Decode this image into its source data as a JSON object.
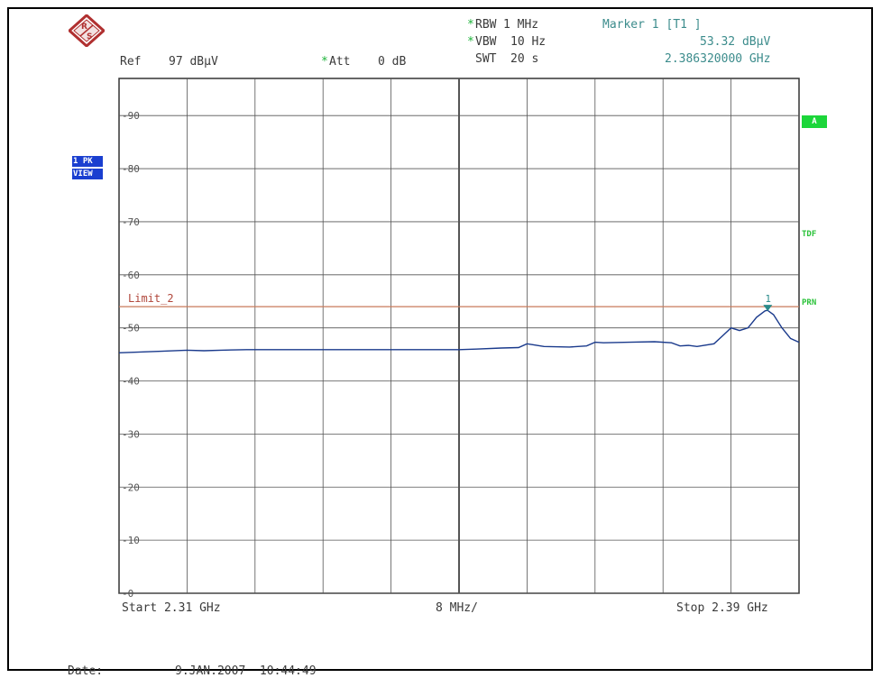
{
  "header": {
    "rbw_label": "RBW",
    "rbw_value": "1 MHz",
    "vbw_label": "VBW",
    "vbw_value": "10 Hz",
    "swt_label": "SWT",
    "swt_value": "20 s",
    "marker_title": "Marker 1 [T1 ]",
    "marker_level": "53.32 dBµV",
    "marker_freq": "2.386320000 GHz",
    "ref_label": "Ref",
    "ref_value": "97 dBµV",
    "att_label": "Att",
    "att_value": "0 dB",
    "star": "*"
  },
  "side_labels": {
    "trace_mode": "1 PK",
    "trace_view": "VIEW",
    "a_label": "A",
    "tdf_label": "TDF",
    "prn_label": "PRN"
  },
  "footer": {
    "start": "Start 2.31 GHz",
    "span_div": "8 MHz/",
    "stop": "Stop 2.39 GHz",
    "date_label": "Date:",
    "date_value": "9.JAN.2007  10:44:49"
  },
  "colors": {
    "trace": "#1a3a8c",
    "grid": "#555555",
    "limit": "#c87a5a",
    "marker": "#2a8a8a",
    "logo": "#b03030"
  },
  "chart_data": {
    "type": "line",
    "x_unit": "GHz",
    "y_unit": "dBµV",
    "xlim": [
      2.31,
      2.39
    ],
    "ylim": [
      0,
      97
    ],
    "y_ticks": [
      0,
      10,
      20,
      30,
      40,
      50,
      60,
      70,
      80,
      90
    ],
    "y_tick_labels": [
      "0",
      "10",
      "20",
      "30",
      "40",
      "50",
      "60",
      "70",
      "80",
      "90"
    ],
    "grid": true,
    "limit_line": {
      "name": "Limit_2",
      "value": 54
    },
    "marker": {
      "label": "1",
      "x": 2.38632,
      "y": 53.32
    },
    "series": [
      {
        "x": [
          2.31,
          2.315,
          2.318,
          2.32,
          2.322,
          2.325,
          2.328,
          2.33,
          2.335,
          2.34,
          2.345,
          2.35,
          2.352,
          2.355,
          2.357,
          2.358,
          2.36,
          2.363,
          2.365,
          2.366,
          2.367,
          2.37,
          2.373,
          2.375,
          2.376,
          2.377,
          2.378,
          2.38,
          2.381,
          2.382,
          2.383,
          2.384,
          2.385,
          2.386,
          2.3863,
          2.387,
          2.388,
          2.389,
          2.39
        ],
        "values": [
          45.3,
          45.6,
          45.8,
          45.7,
          45.8,
          45.9,
          45.9,
          45.9,
          45.9,
          45.9,
          45.9,
          45.9,
          46.0,
          46.2,
          46.3,
          47.0,
          46.5,
          46.4,
          46.6,
          47.3,
          47.2,
          47.3,
          47.4,
          47.2,
          46.6,
          46.7,
          46.5,
          47.0,
          48.5,
          50.0,
          49.5,
          50.0,
          52.0,
          53.2,
          53.3,
          52.5,
          50.0,
          48.0,
          47.3
        ]
      }
    ]
  }
}
